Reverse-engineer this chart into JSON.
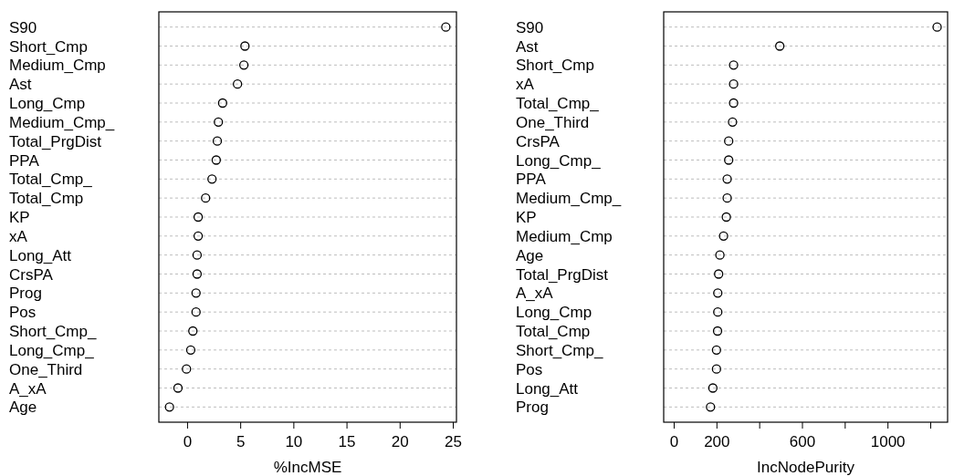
{
  "chart_data": [
    {
      "type": "scatter",
      "orientation": "horizontal",
      "marker": "circle",
      "grid": "y",
      "color": "#000000",
      "xlabel": "%IncMSE",
      "categories": [
        "S90",
        "Short_Cmp",
        "Medium_Cmp",
        "Ast",
        "Long_Cmp",
        "Medium_Cmp_",
        "Total_PrgDist",
        "PPA",
        "Total_Cmp_",
        "Total_Cmp",
        "KP",
        "xA",
        "Long_Att",
        "CrsPA",
        "Prog",
        "Pos",
        "Short_Cmp_",
        "Long_Cmp_",
        "One_Third",
        "A_xA",
        "Age"
      ],
      "values": [
        24.3,
        5.4,
        5.3,
        4.7,
        3.3,
        2.9,
        2.8,
        2.7,
        2.3,
        1.7,
        1.0,
        1.0,
        0.9,
        0.9,
        0.8,
        0.8,
        0.5,
        0.3,
        -0.1,
        -0.9,
        -1.7
      ],
      "xlim": [
        -2.7,
        25.3
      ],
      "xticks": [
        0,
        5,
        10,
        15,
        20,
        25
      ]
    },
    {
      "type": "scatter",
      "orientation": "horizontal",
      "marker": "circle",
      "grid": "y",
      "color": "#000000",
      "xlabel": "IncNodePurity",
      "categories": [
        "S90",
        "Ast",
        "Short_Cmp",
        "xA",
        "Total_Cmp_",
        "One_Third",
        "CrsPA",
        "Long_Cmp_",
        "PPA",
        "Medium_Cmp_",
        "KP",
        "Medium_Cmp",
        "Age",
        "Total_PrgDist",
        "A_xA",
        "Long_Cmp",
        "Total_Cmp",
        "Short_Cmp_",
        "Pos",
        "Long_Att",
        "Prog"
      ],
      "values": [
        1230,
        494,
        278,
        278,
        278,
        273,
        255,
        255,
        248,
        248,
        244,
        231,
        214,
        208,
        204,
        204,
        203,
        198,
        198,
        181,
        170
      ],
      "xlim": [
        -49,
        1279
      ],
      "xticks": [
        0,
        200,
        {
          "value": 400,
          "label": null
        },
        600,
        {
          "value": 800,
          "label": null
        },
        1000,
        {
          "value": 1200,
          "label": null
        }
      ]
    }
  ]
}
